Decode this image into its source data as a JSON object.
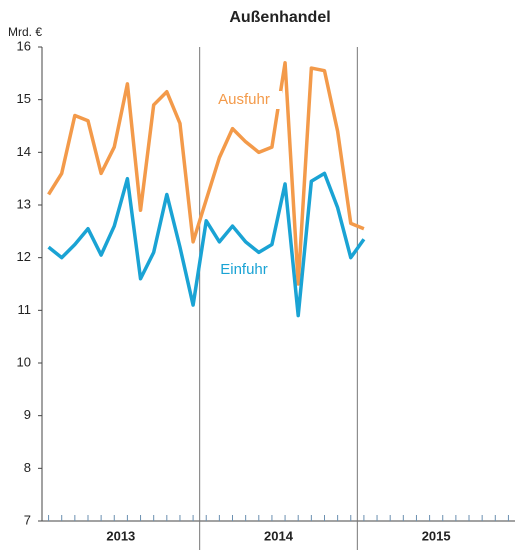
{
  "chart_data": {
    "type": "line",
    "title": "Außenhandel",
    "y_unit": "Mrd. €",
    "categories": [
      null,
      null,
      null,
      null,
      null,
      null,
      null,
      null,
      null,
      null,
      null,
      null,
      null,
      null,
      null,
      null,
      null,
      null,
      null,
      null,
      null,
      null,
      null,
      null,
      null,
      null,
      null,
      null,
      null,
      null,
      null,
      null,
      null,
      null,
      null,
      null
    ],
    "year_groups": [
      {
        "label": "2013",
        "months": 12
      },
      {
        "label": "2014",
        "months": 12
      },
      {
        "label": "2015",
        "months": 12
      }
    ],
    "series": [
      {
        "name": "Ausfuhr",
        "color": "#f39a4a",
        "values": [
          13.2,
          13.6,
          14.7,
          14.6,
          13.6,
          14.1,
          15.3,
          12.9,
          14.9,
          15.15,
          14.55,
          12.3,
          13.1,
          13.9,
          14.45,
          14.2,
          14.0,
          14.1,
          15.7,
          11.5,
          15.6,
          15.55,
          14.4,
          12.65,
          12.55,
          null,
          null,
          null,
          null,
          null,
          null,
          null,
          null,
          null,
          null,
          null
        ]
      },
      {
        "name": "Einfuhr",
        "color": "#1aa3d4",
        "values": [
          12.2,
          12.0,
          12.25,
          12.55,
          12.05,
          12.6,
          13.5,
          11.6,
          12.1,
          13.2,
          12.2,
          11.1,
          12.7,
          12.3,
          12.6,
          12.3,
          12.1,
          12.25,
          13.4,
          10.9,
          13.45,
          13.6,
          12.95,
          12.0,
          12.35,
          null,
          null,
          null,
          null,
          null,
          null,
          null,
          null,
          null,
          null,
          null
        ]
      }
    ],
    "ylim": [
      7,
      16
    ],
    "yticks": [
      7,
      8,
      9,
      10,
      11,
      12,
      13,
      14,
      15,
      16
    ]
  }
}
